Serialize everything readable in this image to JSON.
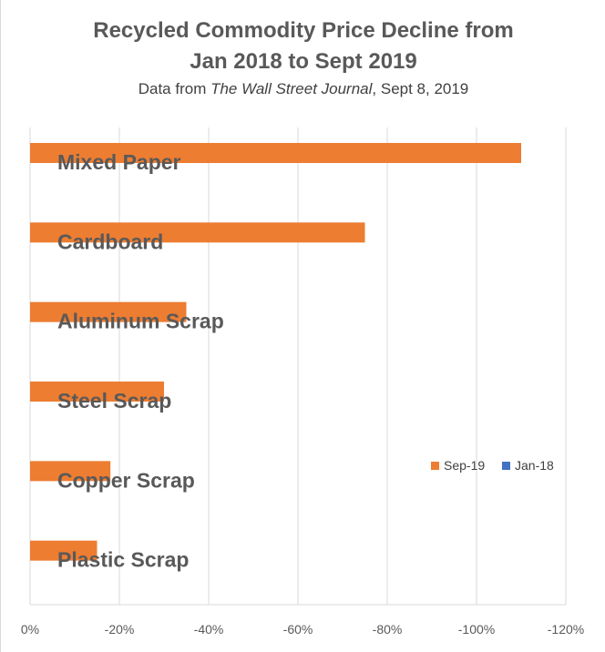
{
  "chart_data": {
    "type": "bar",
    "orientation": "horizontal",
    "title_line1": "Recycled Commodity Price Decline from",
    "title_line2": "Jan 2018 to Sept 2019",
    "subtitle_prefix": "Data from ",
    "subtitle_source": "The Wall Street Journal",
    "subtitle_suffix": ", Sept 8, 2019",
    "categories": [
      "Mixed Paper",
      "Cardboard",
      "Aluminum Scrap",
      "Steel Scrap",
      "Copper Scrap",
      "Plastic Scrap"
    ],
    "series": [
      {
        "name": "Sep-19",
        "color": "#ed7d31",
        "values": [
          -110,
          -75,
          -35,
          -30,
          -18,
          -15
        ]
      },
      {
        "name": "Jan-18",
        "color": "#4472c4",
        "values": [
          0,
          0,
          0,
          0,
          0,
          0
        ]
      }
    ],
    "xlim": [
      0,
      -120
    ],
    "x_ticks": [
      "0%",
      "-20%",
      "-40%",
      "-60%",
      "-80%",
      "-100%",
      "-120%"
    ],
    "x_tick_values": [
      0,
      -20,
      -40,
      -60,
      -80,
      -100,
      -120
    ],
    "grid": "vertical",
    "legend_position": "right",
    "gridline_color": "#d9d9d9"
  }
}
